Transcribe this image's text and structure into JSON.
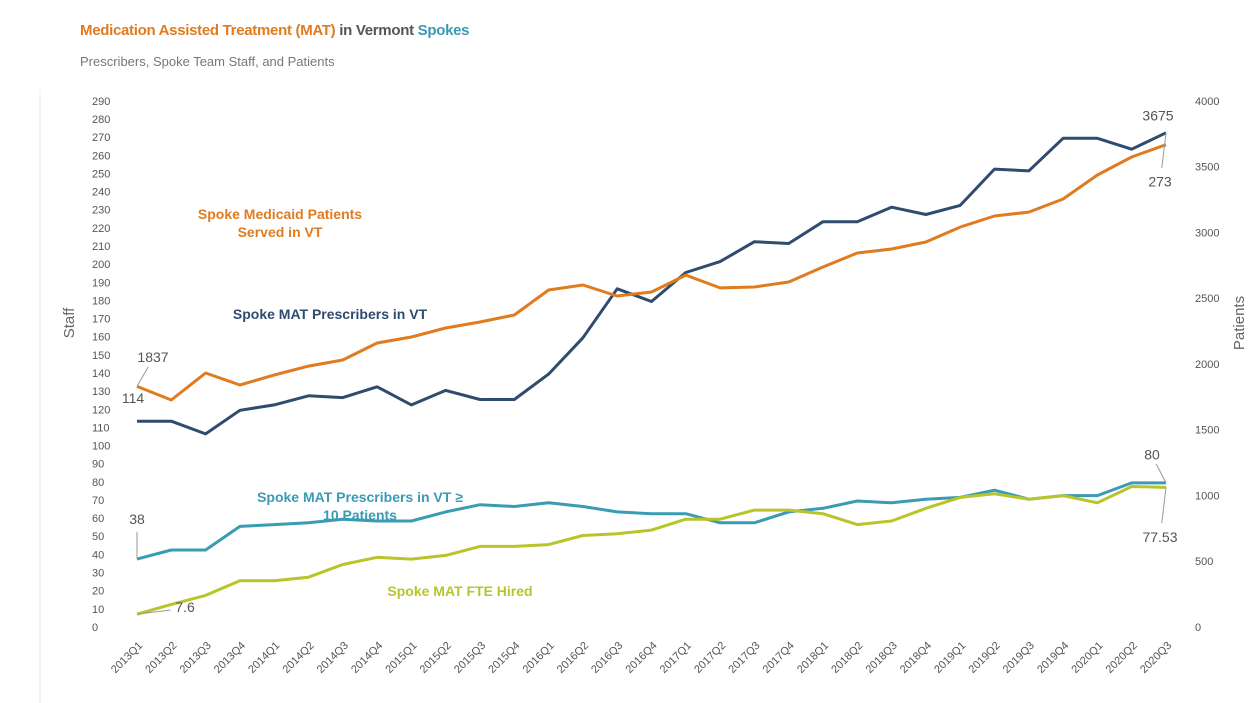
{
  "chart_data": {
    "type": "line",
    "title_parts": [
      {
        "text": "Medication Assisted Treatment (MAT)",
        "color": "#e07b1f"
      },
      {
        "text": "in Vermont",
        "color": "#555555"
      },
      {
        "text": "Spokes",
        "color": "#3a9bb5"
      }
    ],
    "subtitle": "Prescribers, Spoke Team Staff, and Patients",
    "ylabel": "Staff",
    "y2label": "Patients",
    "categories": [
      "2013Q1",
      "2013Q2",
      "2013Q3",
      "2013Q4",
      "2014Q1",
      "2014Q2",
      "2014Q3",
      "2014Q4",
      "2015Q1",
      "2015Q2",
      "2015Q3",
      "2015Q4",
      "2016Q1",
      "2016Q2",
      "2016Q3",
      "2016Q4",
      "2017Q1",
      "2017Q2",
      "2017Q3",
      "2017Q4",
      "2018Q1",
      "2018Q2",
      "2018Q3",
      "2018Q4",
      "2019Q1",
      "2019Q2",
      "2019Q3",
      "2019Q4",
      "2020Q1",
      "2020Q2",
      "2020Q3"
    ],
    "ylim": [
      0,
      290
    ],
    "yticks": [
      0,
      10,
      20,
      30,
      40,
      50,
      60,
      70,
      80,
      90,
      100,
      110,
      120,
      130,
      140,
      150,
      160,
      170,
      180,
      190,
      200,
      210,
      220,
      230,
      240,
      250,
      260,
      270,
      280,
      290
    ],
    "y2lim": [
      0,
      4000
    ],
    "y2ticks": [
      0,
      500,
      1000,
      1500,
      2000,
      2500,
      3000,
      3500,
      4000
    ],
    "grid": false,
    "series": [
      {
        "name": "Spoke MAT Prescribers in VT",
        "color": "#2f4b6e",
        "values": [
          114,
          114,
          107,
          120,
          123,
          128,
          127,
          133,
          123,
          131,
          126,
          126,
          140,
          160,
          187,
          180,
          196,
          202,
          213,
          212,
          224,
          224,
          232,
          228,
          233,
          253,
          252,
          270,
          270,
          264,
          273
        ]
      },
      {
        "name": "Spoke Medicaid Patients Served in VT",
        "color": "#e07b1f",
        "axis": "y2",
        "values": [
          1837,
          1734,
          1939,
          1848,
          1924,
          1992,
          2038,
          2167,
          2213,
          2281,
          2327,
          2380,
          2570,
          2608,
          2525,
          2555,
          2684,
          2586,
          2593,
          2631,
          2745,
          2852,
          2882,
          2935,
          3049,
          3133,
          3163,
          3262,
          3445,
          3582,
          3675
        ]
      },
      {
        "name": "Spoke MAT Prescribers in VT ≥ 10 Patients",
        "color": "#3a9bb5",
        "values": [
          38,
          43,
          43,
          56,
          57,
          58,
          60,
          59,
          59,
          64,
          68,
          67,
          69,
          67,
          64,
          63,
          63,
          58,
          58,
          64,
          66,
          70,
          69,
          71,
          72,
          76,
          71,
          73,
          73,
          80,
          80
        ]
      },
      {
        "name": "Spoke MAT FTE Hired",
        "color": "#b8c42a",
        "values": [
          7.6,
          13,
          18,
          26,
          26,
          28,
          35,
          39,
          38,
          40,
          45,
          45,
          46,
          51,
          52,
          54,
          60,
          60,
          65,
          65,
          63,
          57,
          59,
          66,
          72,
          74,
          71,
          73,
          69,
          78,
          77.53
        ]
      }
    ]
  }
}
